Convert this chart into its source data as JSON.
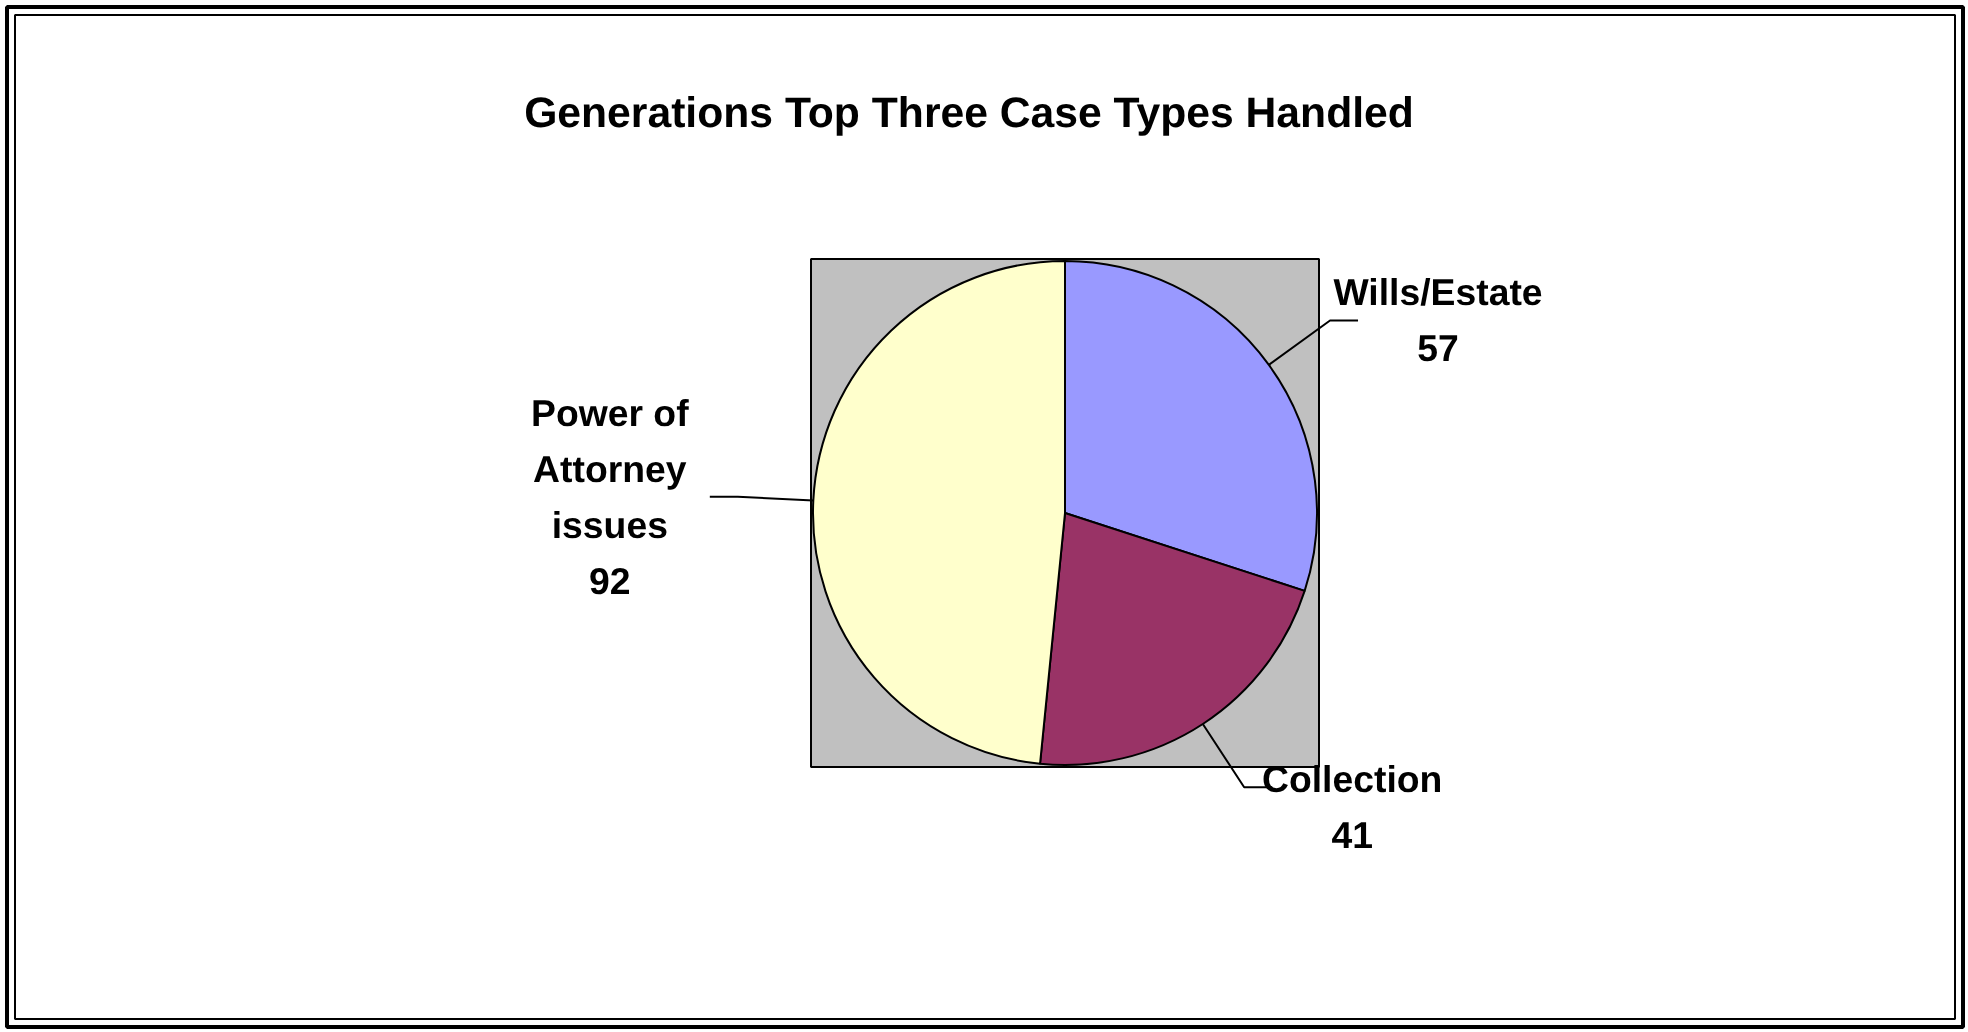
{
  "chart_data": {
    "type": "pie",
    "title": "Generations Top Three Case Types Handled",
    "categories": [
      "Wills/Estate",
      "Collection",
      "Power of Attorney issues"
    ],
    "values": [
      57,
      41,
      92
    ],
    "colors": [
      "#9999ff",
      "#993366",
      "#ffffcc"
    ],
    "data_labels": true,
    "legend": false
  }
}
